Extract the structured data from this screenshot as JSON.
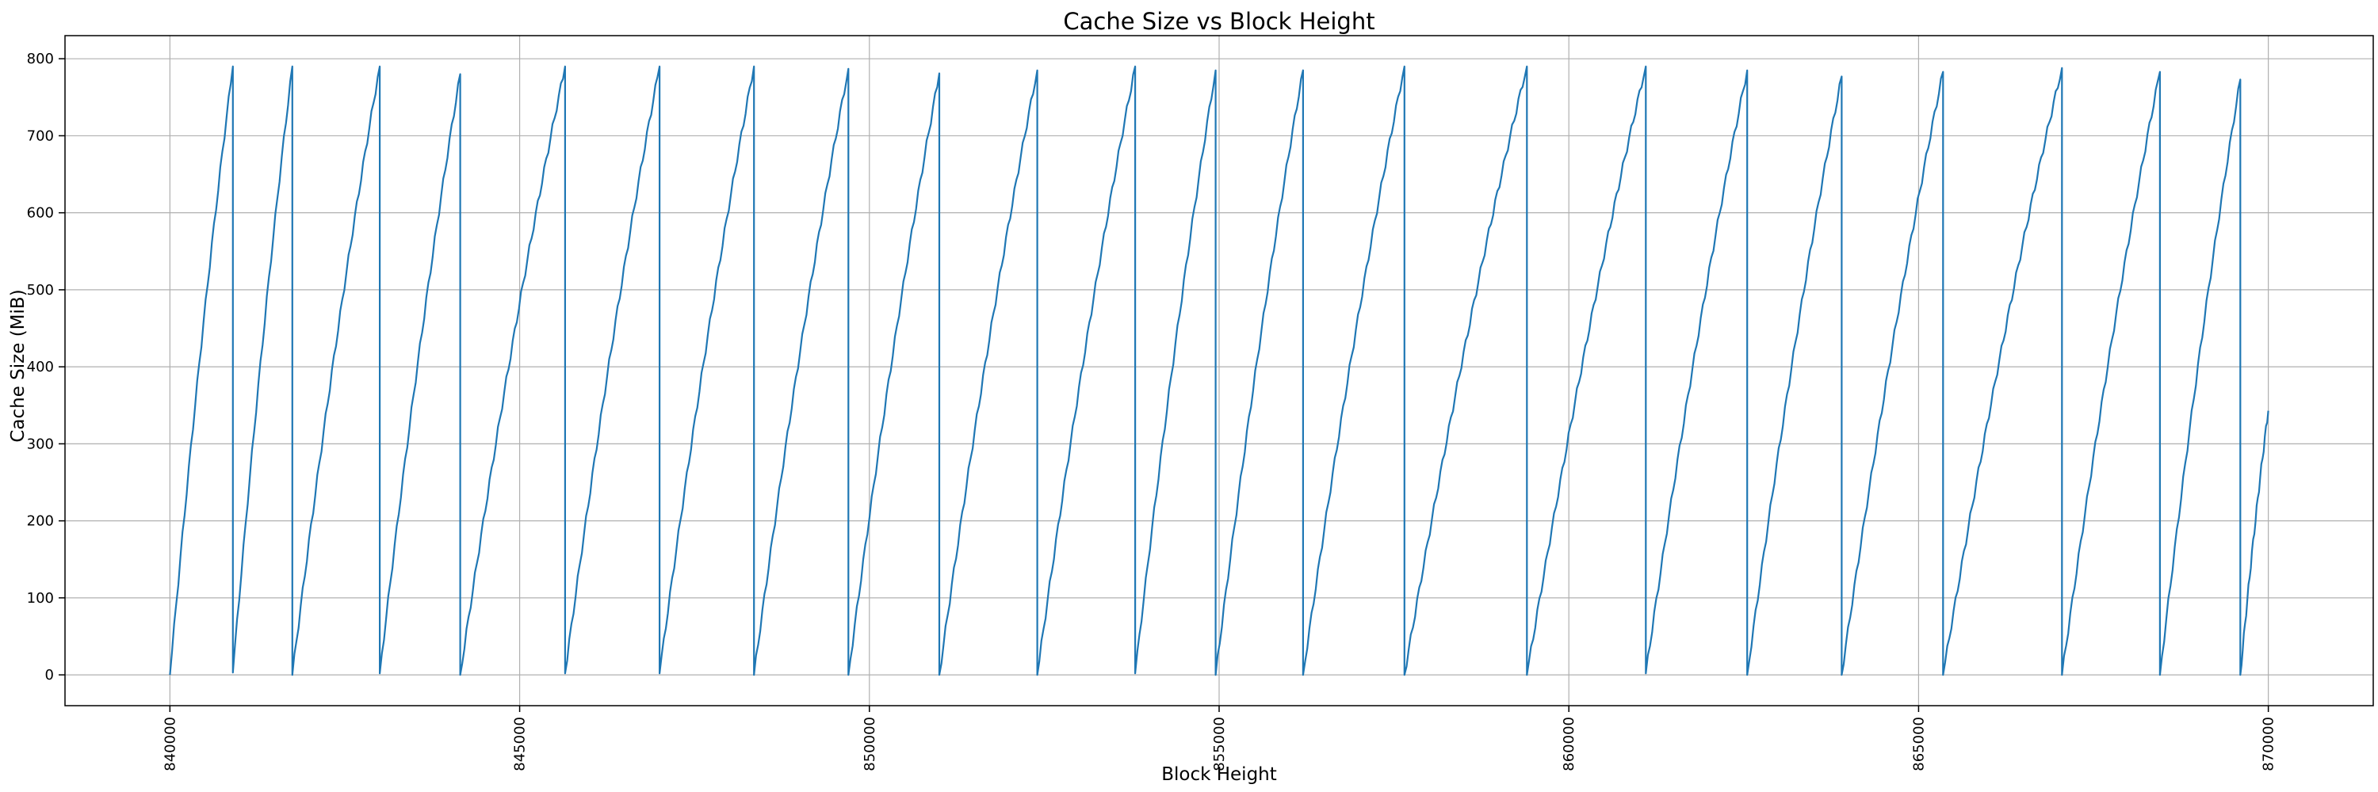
{
  "colors": {
    "series": "#1f77b4",
    "grid": "#b0b0b0",
    "axes": "#000000",
    "background": "#ffffff"
  },
  "chart_data": {
    "type": "line",
    "title": "Cache Size vs Block Height",
    "xlabel": "Block Height",
    "ylabel": "Cache Size (MiB)",
    "xlim": [
      838500,
      871500
    ],
    "ylim": [
      -40,
      830
    ],
    "xticks": [
      840000,
      845000,
      850000,
      855000,
      860000,
      865000,
      870000
    ],
    "xtick_labels": [
      "840000",
      "845000",
      "850000",
      "855000",
      "860000",
      "865000",
      "870000"
    ],
    "yticks": [
      0,
      100,
      200,
      300,
      400,
      500,
      600,
      700,
      800
    ],
    "ytick_labels": [
      "0",
      "100",
      "200",
      "300",
      "400",
      "500",
      "600",
      "700",
      "800"
    ],
    "xtick_rotation": 90,
    "grid": true,
    "legend": "none",
    "series": [
      {
        "cycles": [
          {
            "start": 840000,
            "end": 840900,
            "peak": 790,
            "end_value": 3
          },
          {
            "start": 840900,
            "end": 841750,
            "peak": 790,
            "end_value": 0
          },
          {
            "start": 841750,
            "end": 843000,
            "peak": 790,
            "end_value": 2
          },
          {
            "start": 843000,
            "end": 844150,
            "peak": 780,
            "end_value": 0
          },
          {
            "start": 844150,
            "end": 845650,
            "peak": 790,
            "end_value": 2
          },
          {
            "start": 845650,
            "end": 847000,
            "peak": 790,
            "end_value": 2
          },
          {
            "start": 847000,
            "end": 848350,
            "peak": 790,
            "end_value": 0
          },
          {
            "start": 848350,
            "end": 849700,
            "peak": 787,
            "end_value": 0
          },
          {
            "start": 849700,
            "end": 851000,
            "peak": 781,
            "end_value": 0
          },
          {
            "start": 851000,
            "end": 852400,
            "peak": 785,
            "end_value": 0
          },
          {
            "start": 852400,
            "end": 853800,
            "peak": 790,
            "end_value": 2
          },
          {
            "start": 853800,
            "end": 854950,
            "peak": 785,
            "end_value": 0
          },
          {
            "start": 854950,
            "end": 856200,
            "peak": 785,
            "end_value": 0
          },
          {
            "start": 856200,
            "end": 857650,
            "peak": 790,
            "end_value": 0
          },
          {
            "start": 857650,
            "end": 859400,
            "peak": 790,
            "end_value": 0
          },
          {
            "start": 859400,
            "end": 861100,
            "peak": 790,
            "end_value": 2
          },
          {
            "start": 861100,
            "end": 862550,
            "peak": 785,
            "end_value": 0
          },
          {
            "start": 862550,
            "end": 863900,
            "peak": 777,
            "end_value": 0
          },
          {
            "start": 863900,
            "end": 865350,
            "peak": 783,
            "end_value": 0
          },
          {
            "start": 865350,
            "end": 867050,
            "peak": 788,
            "end_value": 0
          },
          {
            "start": 867050,
            "end": 868450,
            "peak": 783,
            "end_value": 0
          },
          {
            "start": 868450,
            "end": 869600,
            "peak": 773,
            "end_value": 0
          },
          {
            "start": 869600,
            "end": 870000,
            "peak": 343,
            "end_value": null
          }
        ]
      }
    ]
  }
}
